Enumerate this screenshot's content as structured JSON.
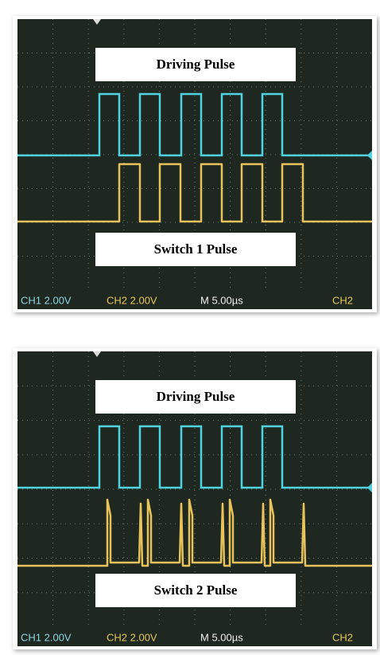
{
  "panels": [
    {
      "top_label": "Driving Pulse",
      "bottom_label": "Switch 1 Pulse",
      "status": [
        "CH1 2.00V",
        "CH2 2.00V",
        "M 5.00µs",
        "CH2"
      ]
    },
    {
      "top_label": "Driving Pulse",
      "bottom_label": "Switch 2 Pulse",
      "status": [
        "CH1 2.00V",
        "CH2 2.00V",
        "M 5.00µs",
        "CH2"
      ]
    }
  ]
}
